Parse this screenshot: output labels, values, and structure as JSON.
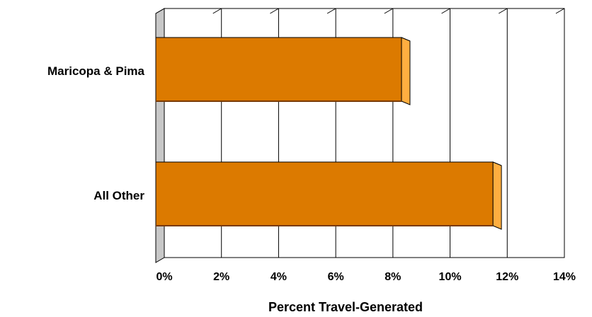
{
  "chart_data": {
    "type": "bar",
    "orientation": "horizontal",
    "style": "3d",
    "categories": [
      "Maricopa & Pima",
      "All Other"
    ],
    "values": [
      8.3,
      11.5
    ],
    "xlabel": "Percent Travel-Generated",
    "ylabel": "",
    "xlim": [
      0,
      14
    ],
    "xticks": [
      "0%",
      "2%",
      "4%",
      "6%",
      "8%",
      "10%",
      "12%",
      "14%"
    ],
    "grid": true,
    "legend": "none",
    "colors": {
      "bar_front": "#dc7a00",
      "bar_side": "#ffae40",
      "bar_top": "#ffcc80",
      "wall": "#c8c8c8"
    }
  }
}
